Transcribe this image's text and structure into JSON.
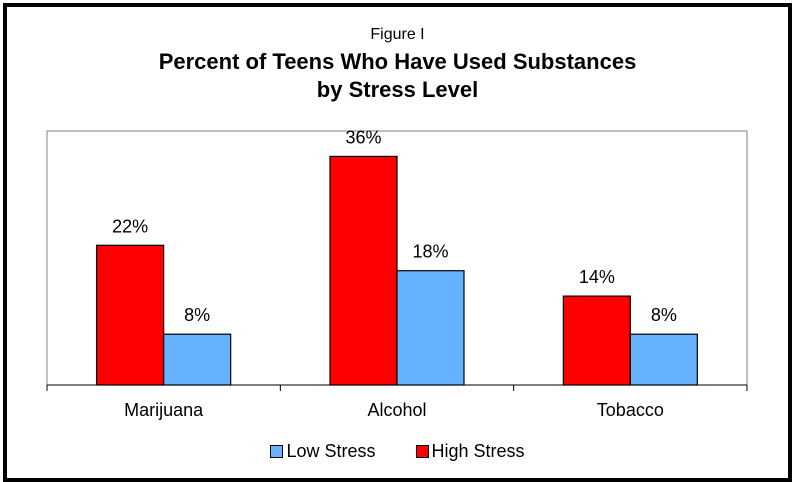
{
  "supertitle": "Figure I",
  "title_line1": "Percent of Teens Who Have Used Substances",
  "title_line2": "by Stress Level",
  "chart_data": {
    "type": "bar",
    "categories": [
      "Marijuana",
      "Alcohol",
      "Tobacco"
    ],
    "series": [
      {
        "name": "High Stress",
        "values": [
          22,
          36,
          14
        ],
        "labels": [
          "22%",
          "36%",
          "14%"
        ],
        "color": "#ff0000"
      },
      {
        "name": "Low Stress",
        "values": [
          8,
          18,
          8
        ],
        "labels": [
          "8%",
          "18%",
          "8%"
        ],
        "color": "#66b2ff"
      }
    ],
    "ylim": [
      0,
      40
    ],
    "grid": false,
    "legend_position": "bottom",
    "legend_order": [
      "Low Stress",
      "High Stress"
    ]
  }
}
